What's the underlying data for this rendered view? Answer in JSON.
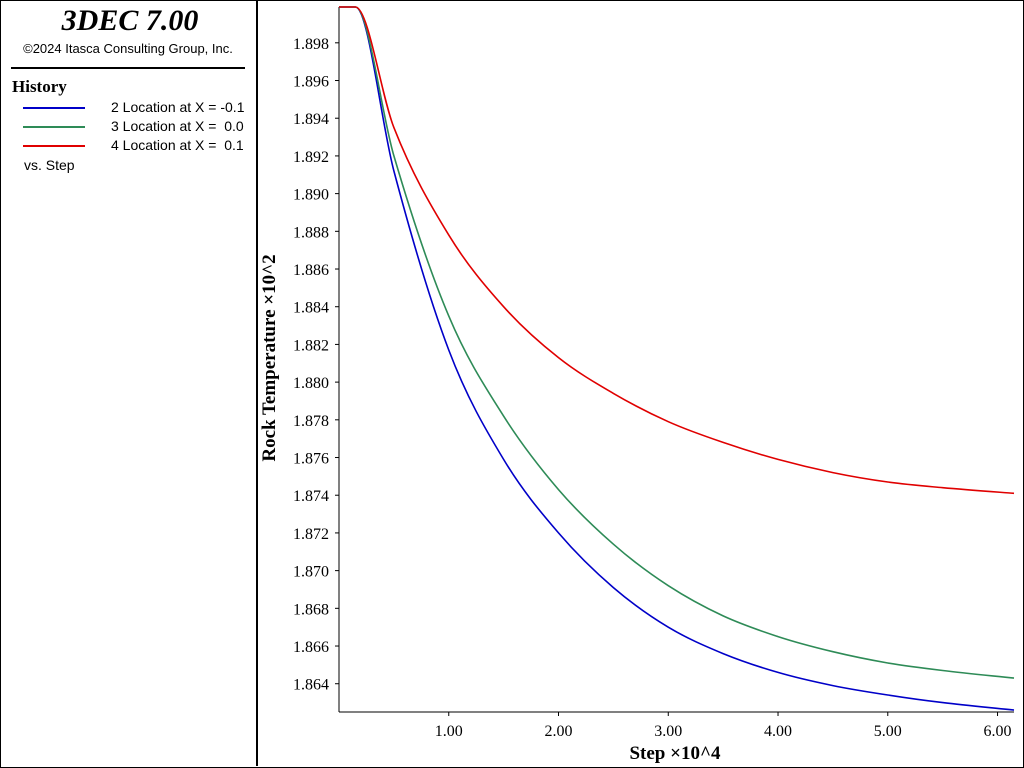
{
  "app": {
    "title": "3DEC 7.00",
    "copyright": "©2024 Itasca Consulting Group, Inc."
  },
  "legend": {
    "title": "History",
    "entries": [
      {
        "label": "2 Location at X = -0.1",
        "color": "#0000c8"
      },
      {
        "label": "3 Location at X =  0.0",
        "color": "#2e8b57"
      },
      {
        "label": "4 Location at X =  0.1",
        "color": "#e00000"
      }
    ],
    "vs": "vs. Step"
  },
  "chart_data": {
    "type": "line",
    "xlabel": "Step ×10^4",
    "ylabel": "Rock Temperature ×10^2",
    "xlim": [
      0,
      6.15
    ],
    "ylim": [
      1.8625,
      1.8999
    ],
    "xticks": [
      "1.00",
      "2.00",
      "3.00",
      "4.00",
      "5.00",
      "6.00"
    ],
    "yticks": [
      "1.864",
      "1.866",
      "1.868",
      "1.870",
      "1.872",
      "1.874",
      "1.876",
      "1.878",
      "1.880",
      "1.882",
      "1.884",
      "1.886",
      "1.888",
      "1.890",
      "1.892",
      "1.894",
      "1.896",
      "1.898"
    ],
    "grid": false,
    "series": [
      {
        "name": "2 Location at X = -0.1",
        "color": "#0000c8",
        "x": [
          0,
          0.15,
          0.5,
          1.0,
          1.5,
          2.0,
          2.5,
          3.0,
          3.5,
          4.0,
          4.5,
          5.0,
          5.5,
          6.15
        ],
        "y": [
          1.8999,
          1.8999,
          1.8912,
          1.8817,
          1.8759,
          1.872,
          1.8691,
          1.867,
          1.8656,
          1.8646,
          1.8639,
          1.8634,
          1.863,
          1.8626
        ]
      },
      {
        "name": "3 Location at X =  0.0",
        "color": "#2e8b57",
        "x": [
          0,
          0.15,
          0.5,
          1.0,
          1.5,
          2.0,
          2.5,
          3.0,
          3.5,
          4.0,
          4.5,
          5.0,
          5.5,
          6.15
        ],
        "y": [
          1.8999,
          1.8999,
          1.892,
          1.8835,
          1.8782,
          1.8743,
          1.8714,
          1.8692,
          1.8676,
          1.8665,
          1.8657,
          1.8651,
          1.8647,
          1.8643
        ]
      },
      {
        "name": "4 Location at X =  0.1",
        "color": "#e00000",
        "x": [
          0,
          0.15,
          0.5,
          1.0,
          1.5,
          2.0,
          2.5,
          3.0,
          3.5,
          4.0,
          4.5,
          5.0,
          5.5,
          6.15
        ],
        "y": [
          1.8999,
          1.8999,
          1.8935,
          1.8878,
          1.884,
          1.8813,
          1.8794,
          1.8779,
          1.8768,
          1.8759,
          1.8752,
          1.8747,
          1.8744,
          1.8741
        ]
      }
    ]
  }
}
